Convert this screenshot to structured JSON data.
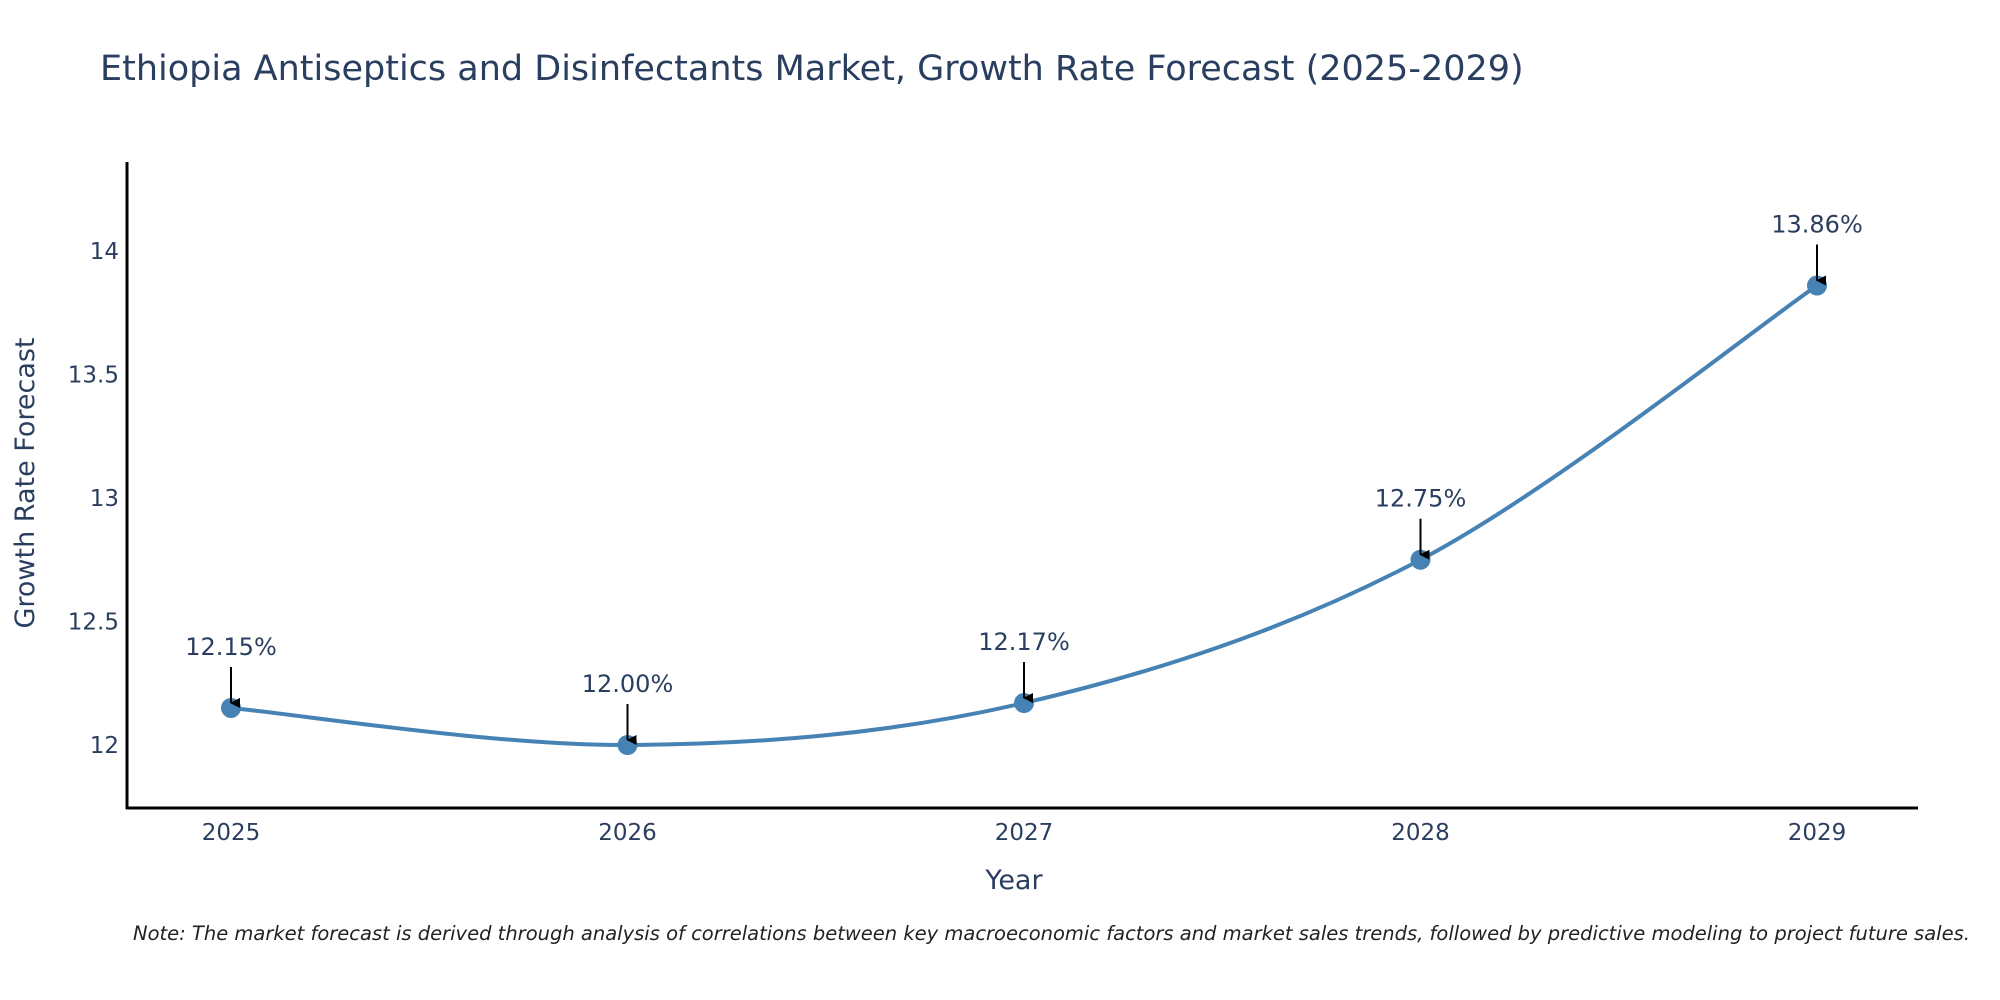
{
  "chart_data": {
    "type": "line",
    "title": "Ethiopia Antiseptics and Disinfectants Market, Growth Rate Forecast (2025-2029)",
    "xlabel": "Year",
    "ylabel": "Growth Rate Forecast",
    "categories": [
      "2025",
      "2026",
      "2027",
      "2028",
      "2029"
    ],
    "series": [
      {
        "name": "Growth Rate Forecast",
        "values": [
          12.15,
          12.0,
          12.17,
          12.75,
          13.86
        ],
        "labels": [
          "12.15%",
          "12.00%",
          "12.17%",
          "12.75%",
          "13.86%"
        ],
        "line_shape": "spline"
      }
    ],
    "yticks": [
      "12",
      "12.5",
      "13",
      "13.5",
      "14"
    ],
    "ylim": [
      11.745,
      14.36
    ],
    "grid": false,
    "note": "Note: The market forecast is derived through analysis of correlations between key macroeconomic factors and market sales trends, followed by predictive modeling to project future sales."
  },
  "colors": {
    "line": "#4682b4",
    "marker": "#4682b4",
    "axis": "#000000",
    "text": "#2a3f5f",
    "arrow": "#000000"
  }
}
